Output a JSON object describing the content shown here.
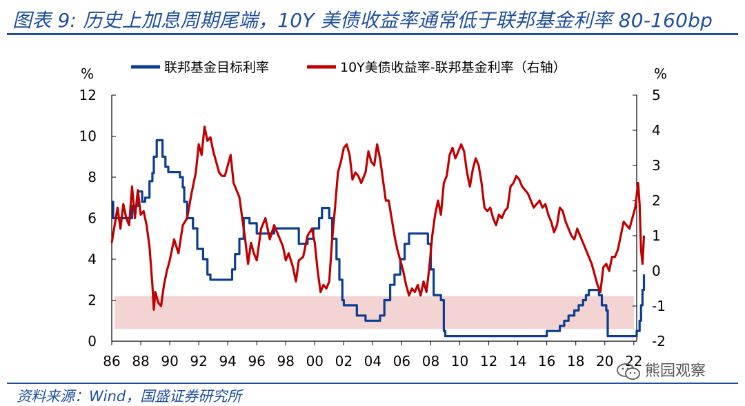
{
  "header": {
    "title": "图表 9:  历史上加息周期尾端，10Y 美债收益率通常低于联邦基金利率 80-160bp"
  },
  "footer": {
    "source": "资料来源：Wind，国盛证券研究所",
    "watermark": "熊园观察"
  },
  "colors": {
    "title": "#1f4e9e",
    "fed": "#0b3d91",
    "spread": "#c00000",
    "band": "#f4d3d3",
    "light_fed": "#8aa5d6",
    "light_spread": "#e68b8b"
  },
  "chart_data": {
    "type": "line",
    "left_axis": {
      "unit": "%",
      "range": [
        0,
        12
      ],
      "ticks": [
        0,
        2,
        4,
        6,
        8,
        10,
        12
      ]
    },
    "right_axis": {
      "unit": "%",
      "range": [
        -2,
        5
      ],
      "ticks": [
        -2,
        -1,
        0,
        1,
        2,
        3,
        4,
        5
      ]
    },
    "x_axis": {
      "range": [
        1986,
        2022.2
      ],
      "tick_labels": [
        "86",
        "88",
        "90",
        "92",
        "94",
        "96",
        "98",
        "00",
        "02",
        "04",
        "06",
        "08",
        "10",
        "12",
        "14",
        "16",
        "18",
        "20",
        "22"
      ]
    },
    "band": {
      "axis": "left",
      "from": 0.6,
      "to": 2.2
    },
    "legend": {
      "position": "top"
    },
    "series": [
      {
        "name": "联邦基金目标利率",
        "axis": "left",
        "points": [
          [
            1986.0,
            6.8
          ],
          [
            1986.1,
            6.0
          ],
          [
            1987.2,
            6.0
          ],
          [
            1987.4,
            6.6
          ],
          [
            1987.8,
            7.3
          ],
          [
            1988.1,
            6.8
          ],
          [
            1988.3,
            7.0
          ],
          [
            1988.6,
            7.8
          ],
          [
            1988.8,
            8.2
          ],
          [
            1988.9,
            9.0
          ],
          [
            1989.1,
            9.8
          ],
          [
            1989.3,
            9.8
          ],
          [
            1989.5,
            9.0
          ],
          [
            1989.7,
            8.5
          ],
          [
            1989.9,
            8.25
          ],
          [
            1990.5,
            8.25
          ],
          [
            1990.7,
            8.0
          ],
          [
            1990.9,
            7.5
          ],
          [
            1991.0,
            6.8
          ],
          [
            1991.2,
            6.0
          ],
          [
            1991.6,
            5.5
          ],
          [
            1991.9,
            4.5
          ],
          [
            1992.3,
            4.0
          ],
          [
            1992.6,
            3.25
          ],
          [
            1992.8,
            3.0
          ],
          [
            1994.1,
            3.0
          ],
          [
            1994.3,
            3.5
          ],
          [
            1994.5,
            4.25
          ],
          [
            1994.8,
            5.0
          ],
          [
            1995.1,
            6.0
          ],
          [
            1995.5,
            5.75
          ],
          [
            1996.0,
            5.25
          ],
          [
            1997.2,
            5.5
          ],
          [
            1998.7,
            5.5
          ],
          [
            1998.9,
            4.75
          ],
          [
            1999.5,
            5.0
          ],
          [
            1999.9,
            5.5
          ],
          [
            2000.3,
            6.0
          ],
          [
            2000.5,
            6.5
          ],
          [
            2001.0,
            6.0
          ],
          [
            2001.2,
            5.0
          ],
          [
            2001.5,
            4.0
          ],
          [
            2001.7,
            3.0
          ],
          [
            2001.9,
            2.0
          ],
          [
            2002.0,
            1.75
          ],
          [
            2002.9,
            1.25
          ],
          [
            2003.5,
            1.0
          ],
          [
            2004.5,
            1.25
          ],
          [
            2004.8,
            2.0
          ],
          [
            2005.2,
            2.75
          ],
          [
            2005.5,
            3.25
          ],
          [
            2005.9,
            4.0
          ],
          [
            2006.2,
            4.75
          ],
          [
            2006.5,
            5.25
          ],
          [
            2007.6,
            5.25
          ],
          [
            2007.8,
            4.75
          ],
          [
            2008.0,
            3.5
          ],
          [
            2008.2,
            2.25
          ],
          [
            2008.7,
            2.0
          ],
          [
            2008.9,
            0.5
          ],
          [
            2009.0,
            0.25
          ],
          [
            2015.9,
            0.25
          ],
          [
            2016.0,
            0.5
          ],
          [
            2016.9,
            0.75
          ],
          [
            2017.2,
            1.0
          ],
          [
            2017.5,
            1.25
          ],
          [
            2017.9,
            1.5
          ],
          [
            2018.2,
            1.75
          ],
          [
            2018.5,
            2.0
          ],
          [
            2018.7,
            2.25
          ],
          [
            2018.9,
            2.5
          ],
          [
            2019.5,
            2.5
          ],
          [
            2019.6,
            2.25
          ],
          [
            2019.8,
            1.75
          ],
          [
            2020.1,
            1.5
          ],
          [
            2020.2,
            0.25
          ],
          [
            2021.9,
            0.25
          ],
          [
            2022.2,
            0.5
          ],
          [
            2022.4,
            1.0
          ],
          [
            2022.5,
            1.75
          ],
          [
            2022.6,
            2.5
          ],
          [
            2022.7,
            3.25
          ]
        ]
      },
      {
        "name": "10Y美债收益率-联邦基金利率（右轴）",
        "axis": "right",
        "points": [
          [
            1986.0,
            0.8
          ],
          [
            1986.2,
            1.3
          ],
          [
            1986.4,
            1.8
          ],
          [
            1986.6,
            1.2
          ],
          [
            1986.8,
            1.9
          ],
          [
            1987.0,
            1.5
          ],
          [
            1987.2,
            1.3
          ],
          [
            1987.4,
            2.4
          ],
          [
            1987.6,
            1.5
          ],
          [
            1987.8,
            2.3
          ],
          [
            1988.0,
            1.6
          ],
          [
            1988.2,
            1.7
          ],
          [
            1988.4,
            1.3
          ],
          [
            1988.6,
            0.7
          ],
          [
            1988.8,
            -0.4
          ],
          [
            1988.9,
            -1.1
          ],
          [
            1989.0,
            -0.6
          ],
          [
            1989.2,
            -0.9
          ],
          [
            1989.4,
            -1.0
          ],
          [
            1989.6,
            -0.4
          ],
          [
            1989.8,
            0.0
          ],
          [
            1990.0,
            0.3
          ],
          [
            1990.3,
            0.9
          ],
          [
            1990.6,
            0.5
          ],
          [
            1990.9,
            1.3
          ],
          [
            1991.2,
            1.5
          ],
          [
            1991.5,
            2.2
          ],
          [
            1991.8,
            2.8
          ],
          [
            1992.0,
            3.6
          ],
          [
            1992.2,
            3.3
          ],
          [
            1992.4,
            4.1
          ],
          [
            1992.6,
            3.7
          ],
          [
            1992.8,
            3.8
          ],
          [
            1993.0,
            3.4
          ],
          [
            1993.2,
            3.1
          ],
          [
            1993.4,
            2.8
          ],
          [
            1993.6,
            2.7
          ],
          [
            1993.8,
            2.7
          ],
          [
            1994.0,
            3.0
          ],
          [
            1994.2,
            3.3
          ],
          [
            1994.4,
            2.5
          ],
          [
            1994.6,
            2.3
          ],
          [
            1994.8,
            2.1
          ],
          [
            1995.0,
            1.5
          ],
          [
            1995.2,
            0.9
          ],
          [
            1995.4,
            0.2
          ],
          [
            1995.6,
            0.8
          ],
          [
            1995.8,
            0.5
          ],
          [
            1996.0,
            0.3
          ],
          [
            1996.3,
            1.2
          ],
          [
            1996.6,
            1.5
          ],
          [
            1996.9,
            0.9
          ],
          [
            1997.2,
            1.3
          ],
          [
            1997.5,
            1.0
          ],
          [
            1997.8,
            0.7
          ],
          [
            1998.0,
            0.3
          ],
          [
            1998.2,
            0.5
          ],
          [
            1998.5,
            0.1
          ],
          [
            1998.7,
            -0.3
          ],
          [
            1998.9,
            0.3
          ],
          [
            1999.2,
            0.4
          ],
          [
            1999.5,
            1.0
          ],
          [
            1999.8,
            1.2
          ],
          [
            2000.0,
            0.8
          ],
          [
            2000.2,
            0.0
          ],
          [
            2000.4,
            -0.6
          ],
          [
            2000.6,
            -0.4
          ],
          [
            2000.8,
            -0.5
          ],
          [
            2001.0,
            -0.3
          ],
          [
            2001.2,
            0.9
          ],
          [
            2001.4,
            1.8
          ],
          [
            2001.6,
            2.8
          ],
          [
            2001.8,
            3.1
          ],
          [
            2002.0,
            3.5
          ],
          [
            2002.2,
            3.6
          ],
          [
            2002.4,
            3.3
          ],
          [
            2002.6,
            2.6
          ],
          [
            2002.8,
            2.8
          ],
          [
            2003.0,
            2.7
          ],
          [
            2003.2,
            2.5
          ],
          [
            2003.5,
            2.8
          ],
          [
            2003.7,
            3.4
          ],
          [
            2003.9,
            3.1
          ],
          [
            2004.1,
            3.0
          ],
          [
            2004.3,
            3.6
          ],
          [
            2004.5,
            3.2
          ],
          [
            2004.7,
            2.6
          ],
          [
            2004.9,
            2.0
          ],
          [
            2005.1,
            2.0
          ],
          [
            2005.3,
            1.5
          ],
          [
            2005.5,
            1.0
          ],
          [
            2005.7,
            0.6
          ],
          [
            2005.9,
            0.3
          ],
          [
            2006.1,
            0.0
          ],
          [
            2006.3,
            -0.4
          ],
          [
            2006.5,
            -0.7
          ],
          [
            2006.7,
            -0.5
          ],
          [
            2006.9,
            -0.6
          ],
          [
            2007.1,
            -0.4
          ],
          [
            2007.3,
            -0.7
          ],
          [
            2007.5,
            -0.3
          ],
          [
            2007.7,
            -0.6
          ],
          [
            2007.9,
            0.1
          ],
          [
            2008.1,
            1.0
          ],
          [
            2008.3,
            1.6
          ],
          [
            2008.5,
            2.0
          ],
          [
            2008.7,
            1.6
          ],
          [
            2008.9,
            2.5
          ],
          [
            2009.1,
            2.7
          ],
          [
            2009.3,
            3.3
          ],
          [
            2009.5,
            3.5
          ],
          [
            2009.7,
            3.2
          ],
          [
            2009.9,
            3.4
          ],
          [
            2010.1,
            3.6
          ],
          [
            2010.3,
            3.4
          ],
          [
            2010.5,
            2.8
          ],
          [
            2010.7,
            2.4
          ],
          [
            2010.9,
            2.9
          ],
          [
            2011.1,
            3.2
          ],
          [
            2011.3,
            3.0
          ],
          [
            2011.5,
            2.5
          ],
          [
            2011.7,
            1.8
          ],
          [
            2011.9,
            1.7
          ],
          [
            2012.1,
            1.8
          ],
          [
            2012.3,
            1.5
          ],
          [
            2012.5,
            1.3
          ],
          [
            2012.7,
            1.6
          ],
          [
            2012.9,
            1.5
          ],
          [
            2013.1,
            1.7
          ],
          [
            2013.3,
            1.8
          ],
          [
            2013.5,
            2.4
          ],
          [
            2013.7,
            2.5
          ],
          [
            2013.9,
            2.7
          ],
          [
            2014.1,
            2.6
          ],
          [
            2014.3,
            2.4
          ],
          [
            2014.5,
            2.3
          ],
          [
            2014.7,
            2.2
          ],
          [
            2014.9,
            2.0
          ],
          [
            2015.1,
            1.8
          ],
          [
            2015.3,
            1.9
          ],
          [
            2015.5,
            2.0
          ],
          [
            2015.7,
            1.8
          ],
          [
            2015.9,
            1.9
          ],
          [
            2016.1,
            1.6
          ],
          [
            2016.3,
            1.4
          ],
          [
            2016.5,
            1.1
          ],
          [
            2016.7,
            1.3
          ],
          [
            2016.9,
            1.8
          ],
          [
            2017.1,
            1.7
          ],
          [
            2017.3,
            1.4
          ],
          [
            2017.5,
            1.2
          ],
          [
            2017.7,
            1.0
          ],
          [
            2017.9,
            0.9
          ],
          [
            2018.1,
            1.2
          ],
          [
            2018.3,
            1.0
          ],
          [
            2018.5,
            0.8
          ],
          [
            2018.7,
            0.6
          ],
          [
            2018.9,
            0.4
          ],
          [
            2019.1,
            0.2
          ],
          [
            2019.3,
            -0.1
          ],
          [
            2019.5,
            -0.4
          ],
          [
            2019.7,
            -0.6
          ],
          [
            2019.9,
            0.1
          ],
          [
            2020.1,
            0.2
          ],
          [
            2020.3,
            0.0
          ],
          [
            2020.5,
            0.4
          ],
          [
            2020.7,
            0.4
          ],
          [
            2020.9,
            0.6
          ],
          [
            2021.1,
            1.0
          ],
          [
            2021.3,
            1.4
          ],
          [
            2021.5,
            1.3
          ],
          [
            2021.7,
            1.2
          ],
          [
            2021.9,
            1.5
          ],
          [
            2022.1,
            1.8
          ],
          [
            2022.3,
            2.5
          ],
          [
            2022.4,
            1.9
          ],
          [
            2022.5,
            0.6
          ],
          [
            2022.6,
            0.2
          ],
          [
            2022.7,
            1.0
          ]
        ]
      }
    ]
  }
}
